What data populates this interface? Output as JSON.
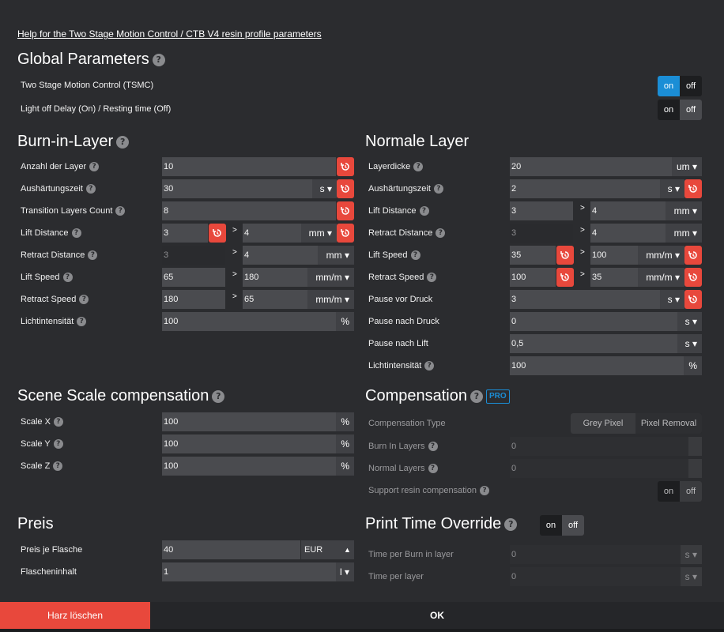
{
  "help_link": "Help for the Two Stage Motion Control / CTB V4 resin profile parameters",
  "global": {
    "title": "Global Parameters",
    "tsmc_label": "Two Stage Motion Control (TSMC)",
    "tsmc_on": "on",
    "tsmc_off": "off",
    "lightoff_label": "Light off Delay (On) / Resting time (Off)",
    "lightoff_on": "on",
    "lightoff_off": "off"
  },
  "burn": {
    "title": "Burn-in-Layer",
    "layer_count_label": "Anzahl der Layer",
    "layer_count": "10",
    "cure_label": "Aushärtungszeit",
    "cure": "30",
    "cure_unit": "s ▾",
    "transition_label": "Transition Layers Count",
    "transition": "8",
    "lift_label": "Lift Distance",
    "lift_1": "3",
    "lift_2": "4",
    "lift_unit": "mm ▾",
    "retract_label": "Retract Distance",
    "retract_1": "3",
    "retract_2": "4",
    "retract_unit": "mm ▾",
    "lift_speed_label": "Lift Speed",
    "lift_speed_1": "65",
    "lift_speed_2": "180",
    "lift_speed_unit": "mm/m ▾",
    "retract_speed_label": "Retract Speed",
    "retract_speed_1": "180",
    "retract_speed_2": "65",
    "retract_speed_unit": "mm/m ▾",
    "light_label": "Lichtintensität",
    "light": "100",
    "light_unit": "%"
  },
  "normal": {
    "title": "Normale Layer",
    "thickness_label": "Layerdicke",
    "thickness": "20",
    "thickness_unit": "um ▾",
    "cure_label": "Aushärtungszeit",
    "cure": "2",
    "cure_unit": "s ▾",
    "lift_label": "Lift Distance",
    "lift_1": "3",
    "lift_2": "4",
    "lift_unit": "mm ▾",
    "retract_label": "Retract Distance",
    "retract_1": "3",
    "retract_2": "4",
    "retract_unit": "mm ▾",
    "lift_speed_label": "Lift Speed",
    "lift_speed_1": "35",
    "lift_speed_2": "100",
    "lift_speed_unit": "mm/m ▾",
    "retract_speed_label": "Retract Speed",
    "retract_speed_1": "100",
    "retract_speed_2": "35",
    "retract_speed_unit": "mm/m ▾",
    "pause_before_label": "Pause vor Druck",
    "pause_before": "3",
    "pause_before_unit": "s ▾",
    "pause_after_label": "Pause nach Druck",
    "pause_after": "0",
    "pause_after_unit": "s ▾",
    "pause_lift_label": "Pause nach Lift",
    "pause_lift": "0,5",
    "pause_lift_unit": "s ▾",
    "light_label": "Lichtintensität",
    "light": "100",
    "light_unit": "%"
  },
  "scale": {
    "title": "Scene Scale compensation",
    "x_label": "Scale X",
    "x": "100",
    "y_label": "Scale Y",
    "y": "100",
    "z_label": "Scale Z",
    "z": "100",
    "unit": "%"
  },
  "compensation": {
    "title": "Compensation",
    "pro": "PRO",
    "type_label": "Compensation Type",
    "grey": "Grey Pixel",
    "removal": "Pixel Removal",
    "burn_label": "Burn In Layers",
    "burn": "0",
    "normal_label": "Normal Layers",
    "normal": "0",
    "support_label": "Support resin compensation",
    "support_on": "on",
    "support_off": "off"
  },
  "preis": {
    "title": "Preis",
    "price_label": "Preis je Flasche",
    "price": "40",
    "currency": "EUR",
    "content_label": "Flascheninhalt",
    "content": "1",
    "content_unit": "l ▾"
  },
  "override": {
    "title": "Print Time Override",
    "on": "on",
    "off": "off",
    "burn_label": "Time per Burn in layer",
    "burn": "0",
    "burn_unit": "s ▾",
    "layer_label": "Time per layer",
    "layer": "0",
    "layer_unit": "s ▾"
  },
  "footer": {
    "clear": "Harz löschen",
    "ok": "OK"
  }
}
